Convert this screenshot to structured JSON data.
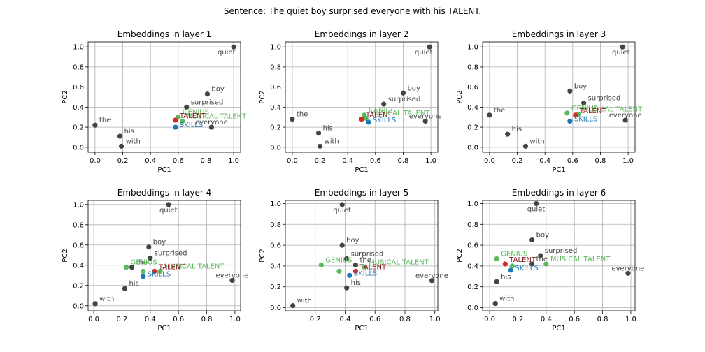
{
  "figure": {
    "suptitle": "Sentence: The quiet boy surprised everyone with his TALENT."
  },
  "colors": {
    "context_point": "#444444",
    "context_text": "#444444",
    "target": "#d62728",
    "target_text": "#8b1a1a",
    "related_green": "#5cb85c",
    "related_blue": "#1f77b4"
  },
  "chart_data": [
    {
      "type": "scatter",
      "title": "Embeddings in layer 1",
      "xlabel": "PC1",
      "ylabel": "PC2",
      "xlim": [
        -0.05,
        1.05
      ],
      "ylim": [
        -0.05,
        1.05
      ],
      "xticks": [
        0.0,
        0.2,
        0.4,
        0.6,
        0.8,
        1.0
      ],
      "yticks": [
        0.0,
        0.2,
        0.4,
        0.6,
        0.8,
        1.0
      ],
      "grid": true,
      "points": [
        {
          "word": "quiet",
          "x": 1.0,
          "y": 1.0,
          "kind": "context"
        },
        {
          "word": "boy",
          "x": 0.81,
          "y": 0.53,
          "kind": "context"
        },
        {
          "word": "surprised",
          "x": 0.66,
          "y": 0.4,
          "kind": "context"
        },
        {
          "word": "the",
          "x": 0.0,
          "y": 0.22,
          "kind": "context"
        },
        {
          "word": "everyone",
          "x": 0.84,
          "y": 0.2,
          "kind": "context"
        },
        {
          "word": "his",
          "x": 0.18,
          "y": 0.11,
          "kind": "context"
        },
        {
          "word": "with",
          "x": 0.19,
          "y": 0.01,
          "kind": "context"
        },
        {
          "word": "GENIUS",
          "x": 0.6,
          "y": 0.3,
          "kind": "green"
        },
        {
          "word": "MUSICAL TALENT",
          "x": 0.63,
          "y": 0.26,
          "kind": "green"
        },
        {
          "word": "TALENT",
          "x": 0.58,
          "y": 0.27,
          "kind": "target"
        },
        {
          "word": "SKILLS",
          "x": 0.58,
          "y": 0.2,
          "kind": "blue"
        }
      ]
    },
    {
      "type": "scatter",
      "title": "Embeddings in layer 2",
      "xlabel": "PC1",
      "ylabel": "PC2",
      "xlim": [
        -0.05,
        1.05
      ],
      "ylim": [
        -0.05,
        1.05
      ],
      "xticks": [
        0.0,
        0.2,
        0.4,
        0.6,
        0.8,
        1.0
      ],
      "yticks": [
        0.0,
        0.2,
        0.4,
        0.6,
        0.8,
        1.0
      ],
      "grid": true,
      "points": [
        {
          "word": "quiet",
          "x": 0.99,
          "y": 1.0,
          "kind": "context"
        },
        {
          "word": "boy",
          "x": 0.8,
          "y": 0.54,
          "kind": "context"
        },
        {
          "word": "surprised",
          "x": 0.66,
          "y": 0.43,
          "kind": "context"
        },
        {
          "word": "the",
          "x": 0.0,
          "y": 0.28,
          "kind": "context"
        },
        {
          "word": "everyone",
          "x": 0.96,
          "y": 0.26,
          "kind": "context"
        },
        {
          "word": "his",
          "x": 0.19,
          "y": 0.14,
          "kind": "context"
        },
        {
          "word": "with",
          "x": 0.2,
          "y": 0.01,
          "kind": "context"
        },
        {
          "word": "GENIUS",
          "x": 0.52,
          "y": 0.32,
          "kind": "green"
        },
        {
          "word": "MUSICAL TALENT",
          "x": 0.53,
          "y": 0.29,
          "kind": "green"
        },
        {
          "word": "TALENT",
          "x": 0.5,
          "y": 0.28,
          "kind": "target"
        },
        {
          "word": "SKILLS",
          "x": 0.55,
          "y": 0.25,
          "kind": "blue"
        }
      ]
    },
    {
      "type": "scatter",
      "title": "Embeddings in layer 3",
      "xlabel": "PC1",
      "ylabel": "PC2",
      "xlim": [
        -0.05,
        1.05
      ],
      "ylim": [
        -0.05,
        1.05
      ],
      "xticks": [
        0.0,
        0.2,
        0.4,
        0.6,
        0.8,
        1.0
      ],
      "yticks": [
        0.0,
        0.2,
        0.4,
        0.6,
        0.8,
        1.0
      ],
      "grid": true,
      "points": [
        {
          "word": "quiet",
          "x": 0.96,
          "y": 1.0,
          "kind": "context"
        },
        {
          "word": "boy",
          "x": 0.58,
          "y": 0.56,
          "kind": "context"
        },
        {
          "word": "surprised",
          "x": 0.68,
          "y": 0.44,
          "kind": "context"
        },
        {
          "word": "the",
          "x": 0.0,
          "y": 0.32,
          "kind": "context"
        },
        {
          "word": "everyone",
          "x": 0.98,
          "y": 0.27,
          "kind": "context"
        },
        {
          "word": "his",
          "x": 0.13,
          "y": 0.13,
          "kind": "context"
        },
        {
          "word": "with",
          "x": 0.26,
          "y": 0.01,
          "kind": "context"
        },
        {
          "word": "GENIUS",
          "x": 0.56,
          "y": 0.34,
          "kind": "green"
        },
        {
          "word": "MUSICAL TALENT",
          "x": 0.64,
          "y": 0.33,
          "kind": "green"
        },
        {
          "word": "TALENT",
          "x": 0.62,
          "y": 0.32,
          "kind": "target"
        },
        {
          "word": "SKILLS",
          "x": 0.58,
          "y": 0.26,
          "kind": "blue"
        }
      ]
    },
    {
      "type": "scatter",
      "title": "Embeddings in layer 4",
      "xlabel": "PC1",
      "ylabel": "PC2",
      "xlim": [
        -0.04,
        1.04
      ],
      "ylim": [
        -0.05,
        1.04
      ],
      "xticks": [
        0.0,
        0.2,
        0.4,
        0.6,
        0.8,
        1.0
      ],
      "yticks": [
        0.0,
        0.2,
        0.4,
        0.6,
        0.8,
        1.0
      ],
      "grid": true,
      "points": [
        {
          "word": "quiet",
          "x": 0.53,
          "y": 1.0,
          "kind": "context"
        },
        {
          "word": "boy",
          "x": 0.39,
          "y": 0.58,
          "kind": "context"
        },
        {
          "word": "surprised",
          "x": 0.4,
          "y": 0.47,
          "kind": "context"
        },
        {
          "word": "the",
          "x": 0.27,
          "y": 0.38,
          "kind": "context"
        },
        {
          "word": "everyone",
          "x": 0.98,
          "y": 0.25,
          "kind": "context"
        },
        {
          "word": "his",
          "x": 0.22,
          "y": 0.17,
          "kind": "context"
        },
        {
          "word": "with",
          "x": 0.01,
          "y": 0.02,
          "kind": "context"
        },
        {
          "word": "GENIUS",
          "x": 0.23,
          "y": 0.38,
          "kind": "green"
        },
        {
          "word": "MUSICAL TALENT",
          "x": 0.47,
          "y": 0.34,
          "kind": "green"
        },
        {
          "word": "TALENT",
          "x": 0.43,
          "y": 0.34,
          "kind": "target"
        },
        {
          "word": "SKILLS",
          "x": 0.35,
          "y": 0.29,
          "kind": "blue"
        },
        {
          "word": "",
          "x": 0.35,
          "y": 0.34,
          "kind": "green"
        }
      ]
    },
    {
      "type": "scatter",
      "title": "Embeddings in layer 5",
      "xlabel": "PC1",
      "ylabel": "PC2",
      "xlim": [
        0.0,
        1.02
      ],
      "ylim": [
        -0.03,
        1.03
      ],
      "xticks": [
        0.2,
        0.4,
        0.6,
        0.8,
        1.0
      ],
      "yticks": [
        0.0,
        0.2,
        0.4,
        0.6,
        0.8,
        1.0
      ],
      "grid": true,
      "points": [
        {
          "word": "quiet",
          "x": 0.38,
          "y": 0.99,
          "kind": "context"
        },
        {
          "word": "boy",
          "x": 0.38,
          "y": 0.6,
          "kind": "context"
        },
        {
          "word": "surprised",
          "x": 0.41,
          "y": 0.47,
          "kind": "context"
        },
        {
          "word": "the",
          "x": 0.47,
          "y": 0.41,
          "kind": "context"
        },
        {
          "word": "everyone",
          "x": 0.98,
          "y": 0.26,
          "kind": "context"
        },
        {
          "word": "his",
          "x": 0.41,
          "y": 0.19,
          "kind": "context"
        },
        {
          "word": "with",
          "x": 0.05,
          "y": 0.02,
          "kind": "context"
        },
        {
          "word": "GENIUS",
          "x": 0.24,
          "y": 0.41,
          "kind": "green"
        },
        {
          "word": "MUSICAL TALENT",
          "x": 0.53,
          "y": 0.39,
          "kind": "green"
        },
        {
          "word": "TALENT",
          "x": 0.47,
          "y": 0.35,
          "kind": "target"
        },
        {
          "word": "SKILLS",
          "x": 0.43,
          "y": 0.31,
          "kind": "blue"
        },
        {
          "word": "",
          "x": 0.36,
          "y": 0.35,
          "kind": "green"
        }
      ]
    },
    {
      "type": "scatter",
      "title": "Embeddings in layer 6",
      "xlabel": "PC1",
      "ylabel": "PC2",
      "xlim": [
        -0.05,
        1.03
      ],
      "ylim": [
        -0.03,
        1.03
      ],
      "xticks": [
        0.0,
        0.2,
        0.4,
        0.6,
        0.8,
        1.0
      ],
      "yticks": [
        0.0,
        0.2,
        0.4,
        0.6,
        0.8,
        1.0
      ],
      "grid": true,
      "points": [
        {
          "word": "quiet",
          "x": 0.33,
          "y": 1.0,
          "kind": "context"
        },
        {
          "word": "boy",
          "x": 0.3,
          "y": 0.65,
          "kind": "context"
        },
        {
          "word": "surprised",
          "x": 0.36,
          "y": 0.5,
          "kind": "context"
        },
        {
          "word": "the",
          "x": 0.3,
          "y": 0.42,
          "kind": "context"
        },
        {
          "word": "everyone",
          "x": 0.98,
          "y": 0.33,
          "kind": "context"
        },
        {
          "word": "his",
          "x": 0.05,
          "y": 0.25,
          "kind": "context"
        },
        {
          "word": "with",
          "x": 0.04,
          "y": 0.04,
          "kind": "context"
        },
        {
          "word": "GENIUS",
          "x": 0.05,
          "y": 0.47,
          "kind": "green"
        },
        {
          "word": "MUSICAL TALENT",
          "x": 0.4,
          "y": 0.42,
          "kind": "green"
        },
        {
          "word": "TALENT",
          "x": 0.11,
          "y": 0.42,
          "kind": "target"
        },
        {
          "word": "SKILLS",
          "x": 0.15,
          "y": 0.36,
          "kind": "blue"
        },
        {
          "word": "",
          "x": 0.16,
          "y": 0.4,
          "kind": "green"
        }
      ]
    }
  ]
}
